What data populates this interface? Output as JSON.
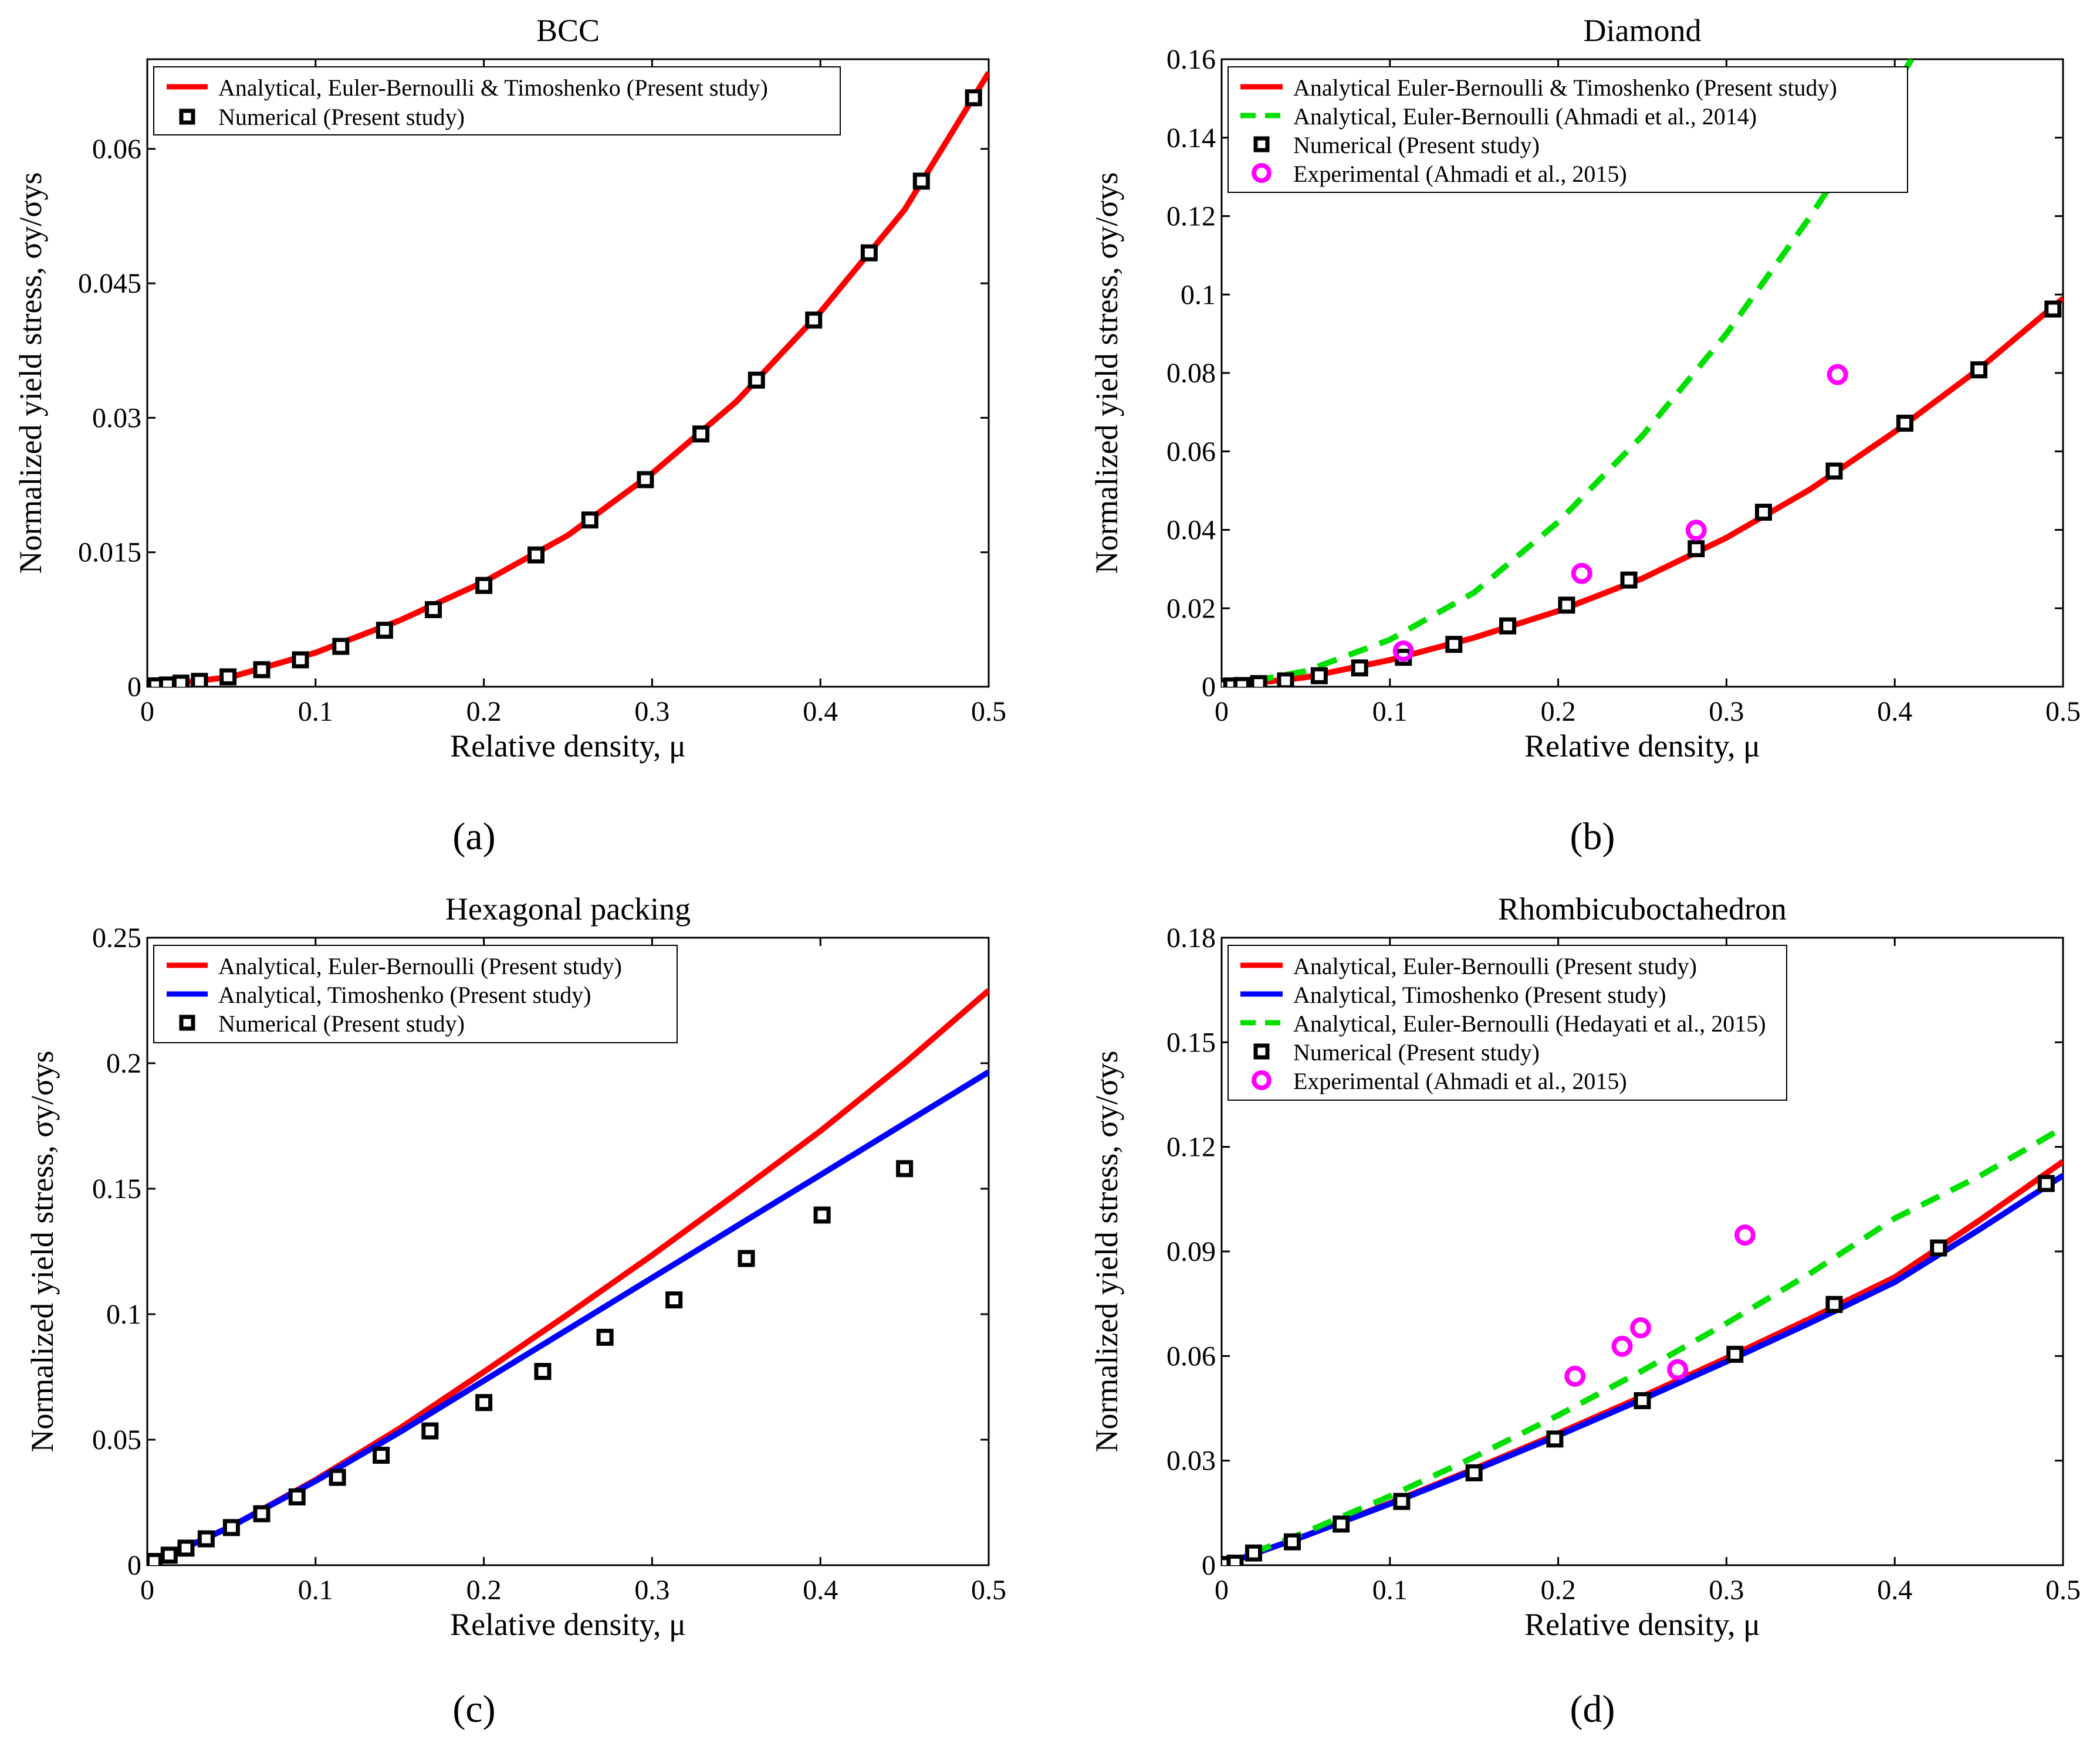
{
  "figure": {
    "panel_labels": [
      "(a)",
      "(b)",
      "(c)",
      "(d)"
    ]
  },
  "chart_data": [
    {
      "type": "line",
      "title": "BCC",
      "xlabel": "Relative density, μ",
      "ylabel": "Normalized yield stress, σy/σys",
      "xlim": [
        0,
        0.5
      ],
      "ylim": [
        0,
        0.07
      ],
      "x_ticks": [
        0,
        0.1,
        0.2,
        0.3,
        0.4,
        0.5
      ],
      "x_tick_labels": [
        "0",
        "0.1",
        "0.2",
        "0.3",
        "0.4",
        "0.5"
      ],
      "y_ticks": [
        0,
        0.015,
        0.03,
        0.045,
        0.06
      ],
      "y_tick_labels": [
        "0",
        "0.015",
        "0.03",
        "0.045",
        "0.06"
      ],
      "series": [
        {
          "name": "Analytical, Euler-Bernoulli & Timoshenko (Present study)",
          "style": "solid",
          "color": "#ff0000",
          "x": [
            0,
            0.05,
            0.1,
            0.15,
            0.2,
            0.25,
            0.3,
            0.35,
            0.4,
            0.45,
            0.5
          ],
          "y": [
            0,
            0.0011,
            0.0038,
            0.0074,
            0.0117,
            0.0169,
            0.0238,
            0.0318,
            0.0418,
            0.0532,
            0.0685
          ]
        },
        {
          "name": "Numerical (Present study)",
          "style": "square-marker",
          "color": "#000000",
          "x": [
            0,
            0.005,
            0.012,
            0.02,
            0.031,
            0.048,
            0.068,
            0.091,
            0.115,
            0.141,
            0.17,
            0.2,
            0.231,
            0.263,
            0.296,
            0.329,
            0.362,
            0.396,
            0.429,
            0.46,
            0.491
          ],
          "y": [
            0,
            0.0001,
            0.0002,
            0.0004,
            0.0006,
            0.0011,
            0.0019,
            0.003,
            0.0045,
            0.0063,
            0.0086,
            0.0113,
            0.0147,
            0.0186,
            0.0231,
            0.0282,
            0.0342,
            0.0409,
            0.0484,
            0.0564,
            0.0657
          ]
        }
      ]
    },
    {
      "type": "line",
      "title": "Diamond",
      "xlabel": "Relative density, μ",
      "ylabel": "Normalized yield stress, σy/σys",
      "xlim": [
        0,
        0.5
      ],
      "ylim": [
        0,
        0.16
      ],
      "x_ticks": [
        0,
        0.1,
        0.2,
        0.3,
        0.4,
        0.5
      ],
      "x_tick_labels": [
        "0",
        "0.1",
        "0.2",
        "0.3",
        "0.4",
        "0.5"
      ],
      "y_ticks": [
        0,
        0.02,
        0.04,
        0.06,
        0.08,
        0.1,
        0.12,
        0.14,
        0.16
      ],
      "y_tick_labels": [
        "0",
        "0.02",
        "0.04",
        "0.06",
        "0.08",
        "0.1",
        "0.12",
        "0.14",
        "0.16"
      ],
      "series": [
        {
          "name": "Analytical Euler-Bernoulli & Timoshenko (Present study)",
          "style": "solid",
          "color": "#ff0000",
          "x": [
            0,
            0.05,
            0.1,
            0.15,
            0.2,
            0.25,
            0.3,
            0.35,
            0.4,
            0.45,
            0.5
          ],
          "y": [
            0,
            0.0024,
            0.0068,
            0.0125,
            0.0193,
            0.0276,
            0.038,
            0.0504,
            0.065,
            0.081,
            0.099
          ]
        },
        {
          "name": "Analytical, Euler-Bernoulli (Ahmadi et al., 2014)",
          "style": "dashed",
          "color": "#00e000",
          "x": [
            0,
            0.05,
            0.1,
            0.15,
            0.2,
            0.25,
            0.3,
            0.35,
            0.4,
            0.41
          ],
          "y": [
            0,
            0.004,
            0.012,
            0.024,
            0.042,
            0.064,
            0.09,
            0.12,
            0.153,
            0.16
          ]
        },
        {
          "name": "Numerical (Present study)",
          "style": "square-marker",
          "color": "#000000",
          "x": [
            0,
            0.006,
            0.012,
            0.022,
            0.038,
            0.058,
            0.082,
            0.108,
            0.138,
            0.17,
            0.205,
            0.242,
            0.282,
            0.322,
            0.364,
            0.406,
            0.45,
            0.494
          ],
          "y": [
            0,
            0.0002,
            0.0003,
            0.0008,
            0.0015,
            0.0028,
            0.0048,
            0.0075,
            0.0108,
            0.0155,
            0.0208,
            0.0272,
            0.0352,
            0.0445,
            0.055,
            0.0672,
            0.0808,
            0.0963
          ]
        },
        {
          "name": "Experimental (Ahmadi et al., 2015)",
          "style": "circle-marker",
          "color": "#ff00ff",
          "x": [
            0.108,
            0.214,
            0.282,
            0.366
          ],
          "y": [
            0.0091,
            0.0289,
            0.0399,
            0.0796
          ]
        }
      ]
    },
    {
      "type": "line",
      "title": "Hexagonal packing",
      "xlabel": "Relative density, μ",
      "ylabel": "Normalized yield stress, σy/σys",
      "xlim": [
        0,
        0.5
      ],
      "ylim": [
        0,
        0.25
      ],
      "x_ticks": [
        0,
        0.1,
        0.2,
        0.3,
        0.4,
        0.5
      ],
      "x_tick_labels": [
        "0",
        "0.1",
        "0.2",
        "0.3",
        "0.4",
        "0.5"
      ],
      "y_ticks": [
        0,
        0.05,
        0.1,
        0.15,
        0.2,
        0.25
      ],
      "y_tick_labels": [
        "0",
        "0.05",
        "0.1",
        "0.15",
        "0.2",
        "0.25"
      ],
      "series": [
        {
          "name": "Analytical, Euler-Bernoulli (Present study)",
          "style": "solid",
          "color": "#ff0000",
          "x": [
            0,
            0.05,
            0.1,
            0.15,
            0.2,
            0.25,
            0.3,
            0.35,
            0.4,
            0.45,
            0.5
          ],
          "y": [
            0,
            0.0155,
            0.034,
            0.0545,
            0.077,
            0.1,
            0.1235,
            0.148,
            0.173,
            0.2,
            0.229
          ]
        },
        {
          "name": "Analytical, Timoshenko (Present study)",
          "style": "solid",
          "color": "#0000ff",
          "x": [
            0,
            0.05,
            0.1,
            0.15,
            0.2,
            0.25,
            0.3,
            0.35,
            0.4,
            0.45,
            0.5
          ],
          "y": [
            0,
            0.0155,
            0.0335,
            0.053,
            0.0735,
            0.094,
            0.1145,
            0.135,
            0.1555,
            0.176,
            0.1965
          ]
        },
        {
          "name": "Numerical (Present study)",
          "style": "square-marker",
          "color": "#000000",
          "x": [
            0,
            0.004,
            0.013,
            0.023,
            0.035,
            0.05,
            0.068,
            0.089,
            0.113,
            0.139,
            0.168,
            0.2,
            0.235,
            0.272,
            0.313,
            0.356,
            0.401,
            0.45
          ],
          "y": [
            0,
            0.0015,
            0.004,
            0.0068,
            0.0105,
            0.015,
            0.0205,
            0.0272,
            0.035,
            0.0438,
            0.0535,
            0.0648,
            0.0772,
            0.0908,
            0.1057,
            0.1222,
            0.1395,
            0.158
          ]
        }
      ]
    },
    {
      "type": "line",
      "title": "Rhombicuboctahedron",
      "xlabel": "Relative density, μ",
      "ylabel": "Normalized yield stress, σy/σys",
      "xlim": [
        0,
        0.5
      ],
      "ylim": [
        0,
        0.18
      ],
      "x_ticks": [
        0,
        0.1,
        0.2,
        0.3,
        0.4,
        0.5
      ],
      "x_tick_labels": [
        "0",
        "0.1",
        "0.2",
        "0.3",
        "0.4",
        "0.5"
      ],
      "y_ticks": [
        0,
        0.03,
        0.06,
        0.09,
        0.12,
        0.15,
        0.18
      ],
      "y_tick_labels": [
        "0",
        "0.03",
        "0.06",
        "0.09",
        "0.12",
        "0.15",
        "0.18"
      ],
      "series": [
        {
          "name": "Analytical, Euler-Bernoulli (Present study)",
          "style": "solid",
          "color": "#ff0000",
          "x": [
            0,
            0.05,
            0.1,
            0.15,
            0.2,
            0.25,
            0.3,
            0.35,
            0.4,
            0.45,
            0.5
          ],
          "y": [
            0,
            0.0085,
            0.0178,
            0.0276,
            0.0378,
            0.0484,
            0.0594,
            0.0708,
            0.0826,
            0.0988,
            0.1158
          ]
        },
        {
          "name": "Analytical, Timoshenko (Present study)",
          "style": "solid",
          "color": "#0000ff",
          "x": [
            0,
            0.05,
            0.1,
            0.15,
            0.2,
            0.25,
            0.3,
            0.35,
            0.4,
            0.45,
            0.5
          ],
          "y": [
            0,
            0.0085,
            0.0176,
            0.0272,
            0.0372,
            0.0476,
            0.0584,
            0.0696,
            0.0812,
            0.0962,
            0.1118
          ]
        },
        {
          "name": "Analytical, Euler-Bernoulli (Hedayati et al., 2015)",
          "style": "dashed",
          "color": "#00e000",
          "x": [
            0,
            0.05,
            0.1,
            0.15,
            0.2,
            0.25,
            0.3,
            0.35,
            0.4,
            0.45,
            0.5
          ],
          "y": [
            0,
            0.0095,
            0.0198,
            0.031,
            0.043,
            0.0558,
            0.0694,
            0.0838,
            0.0995,
            0.1115,
            0.1255
          ]
        },
        {
          "name": "Numerical (Present study)",
          "style": "square-marker",
          "color": "#000000",
          "x": [
            0,
            0.003,
            0.008,
            0.019,
            0.042,
            0.071,
            0.107,
            0.15,
            0.198,
            0.25,
            0.305,
            0.364,
            0.426,
            0.49
          ],
          "y": [
            0,
            0.0002,
            0.0006,
            0.0035,
            0.0067,
            0.0118,
            0.0183,
            0.0265,
            0.0362,
            0.0472,
            0.0605,
            0.0748,
            0.091,
            0.1095
          ]
        },
        {
          "name": "Experimental (Ahmadi et al., 2015)",
          "style": "circle-marker",
          "color": "#ff00ff",
          "x": [
            0.21,
            0.238,
            0.249,
            0.271,
            0.311
          ],
          "y": [
            0.0542,
            0.0628,
            0.0681,
            0.0561,
            0.0947
          ]
        }
      ]
    }
  ]
}
